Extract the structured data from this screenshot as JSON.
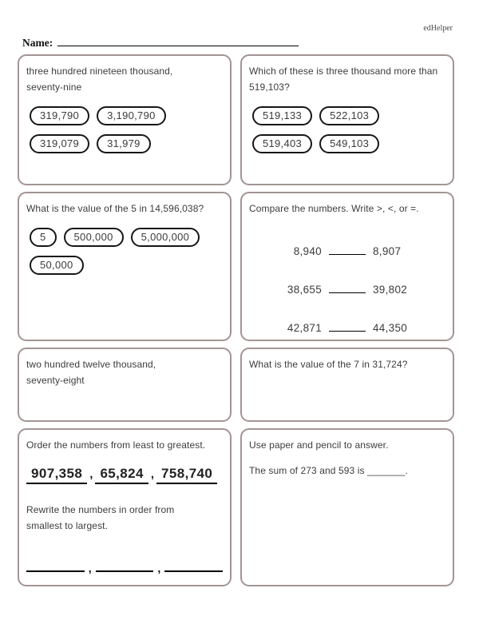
{
  "header": {
    "brand": "edHelper",
    "name_label": "Name:"
  },
  "symbols": {
    "comma": ","
  },
  "q1": {
    "prompt_lines": [
      "three hundred nineteen thousand,",
      "seventy-nine"
    ],
    "choices": [
      "319,790",
      "3,190,790",
      "319,079",
      "31,979"
    ]
  },
  "q2": {
    "prompt_lines": [
      "Which of these is three thousand more than",
      "519,103?"
    ],
    "choices": [
      "519,133",
      "522,103",
      "519,403",
      "549,103"
    ]
  },
  "q3": {
    "prompt": "What is the value of the 5 in 14,596,038?",
    "choices": [
      "5",
      "500,000",
      "5,000,000",
      "50,000"
    ]
  },
  "q4": {
    "prompt": "Compare the numbers. Write >, <, or =.",
    "pairs": [
      {
        "left": "8,940",
        "right": "8,907"
      },
      {
        "left": "38,655",
        "right": "39,802"
      },
      {
        "left": "42,871",
        "right": "44,350"
      }
    ]
  },
  "q5": {
    "prompt_lines": [
      "two hundred twelve thousand,",
      "seventy-eight"
    ]
  },
  "q6": {
    "prompt": "What is the value of the 7 in 31,724?"
  },
  "q7": {
    "prompt": "Order the numbers from least to greatest.",
    "numbers": [
      "907,358",
      "65,824",
      "758,740"
    ],
    "instruction_lines": [
      "Rewrite the numbers in order from",
      "smallest to largest."
    ]
  },
  "q8": {
    "prompt": "Use paper and pencil to answer.",
    "question": "The sum of 273 and 593 is _______."
  }
}
